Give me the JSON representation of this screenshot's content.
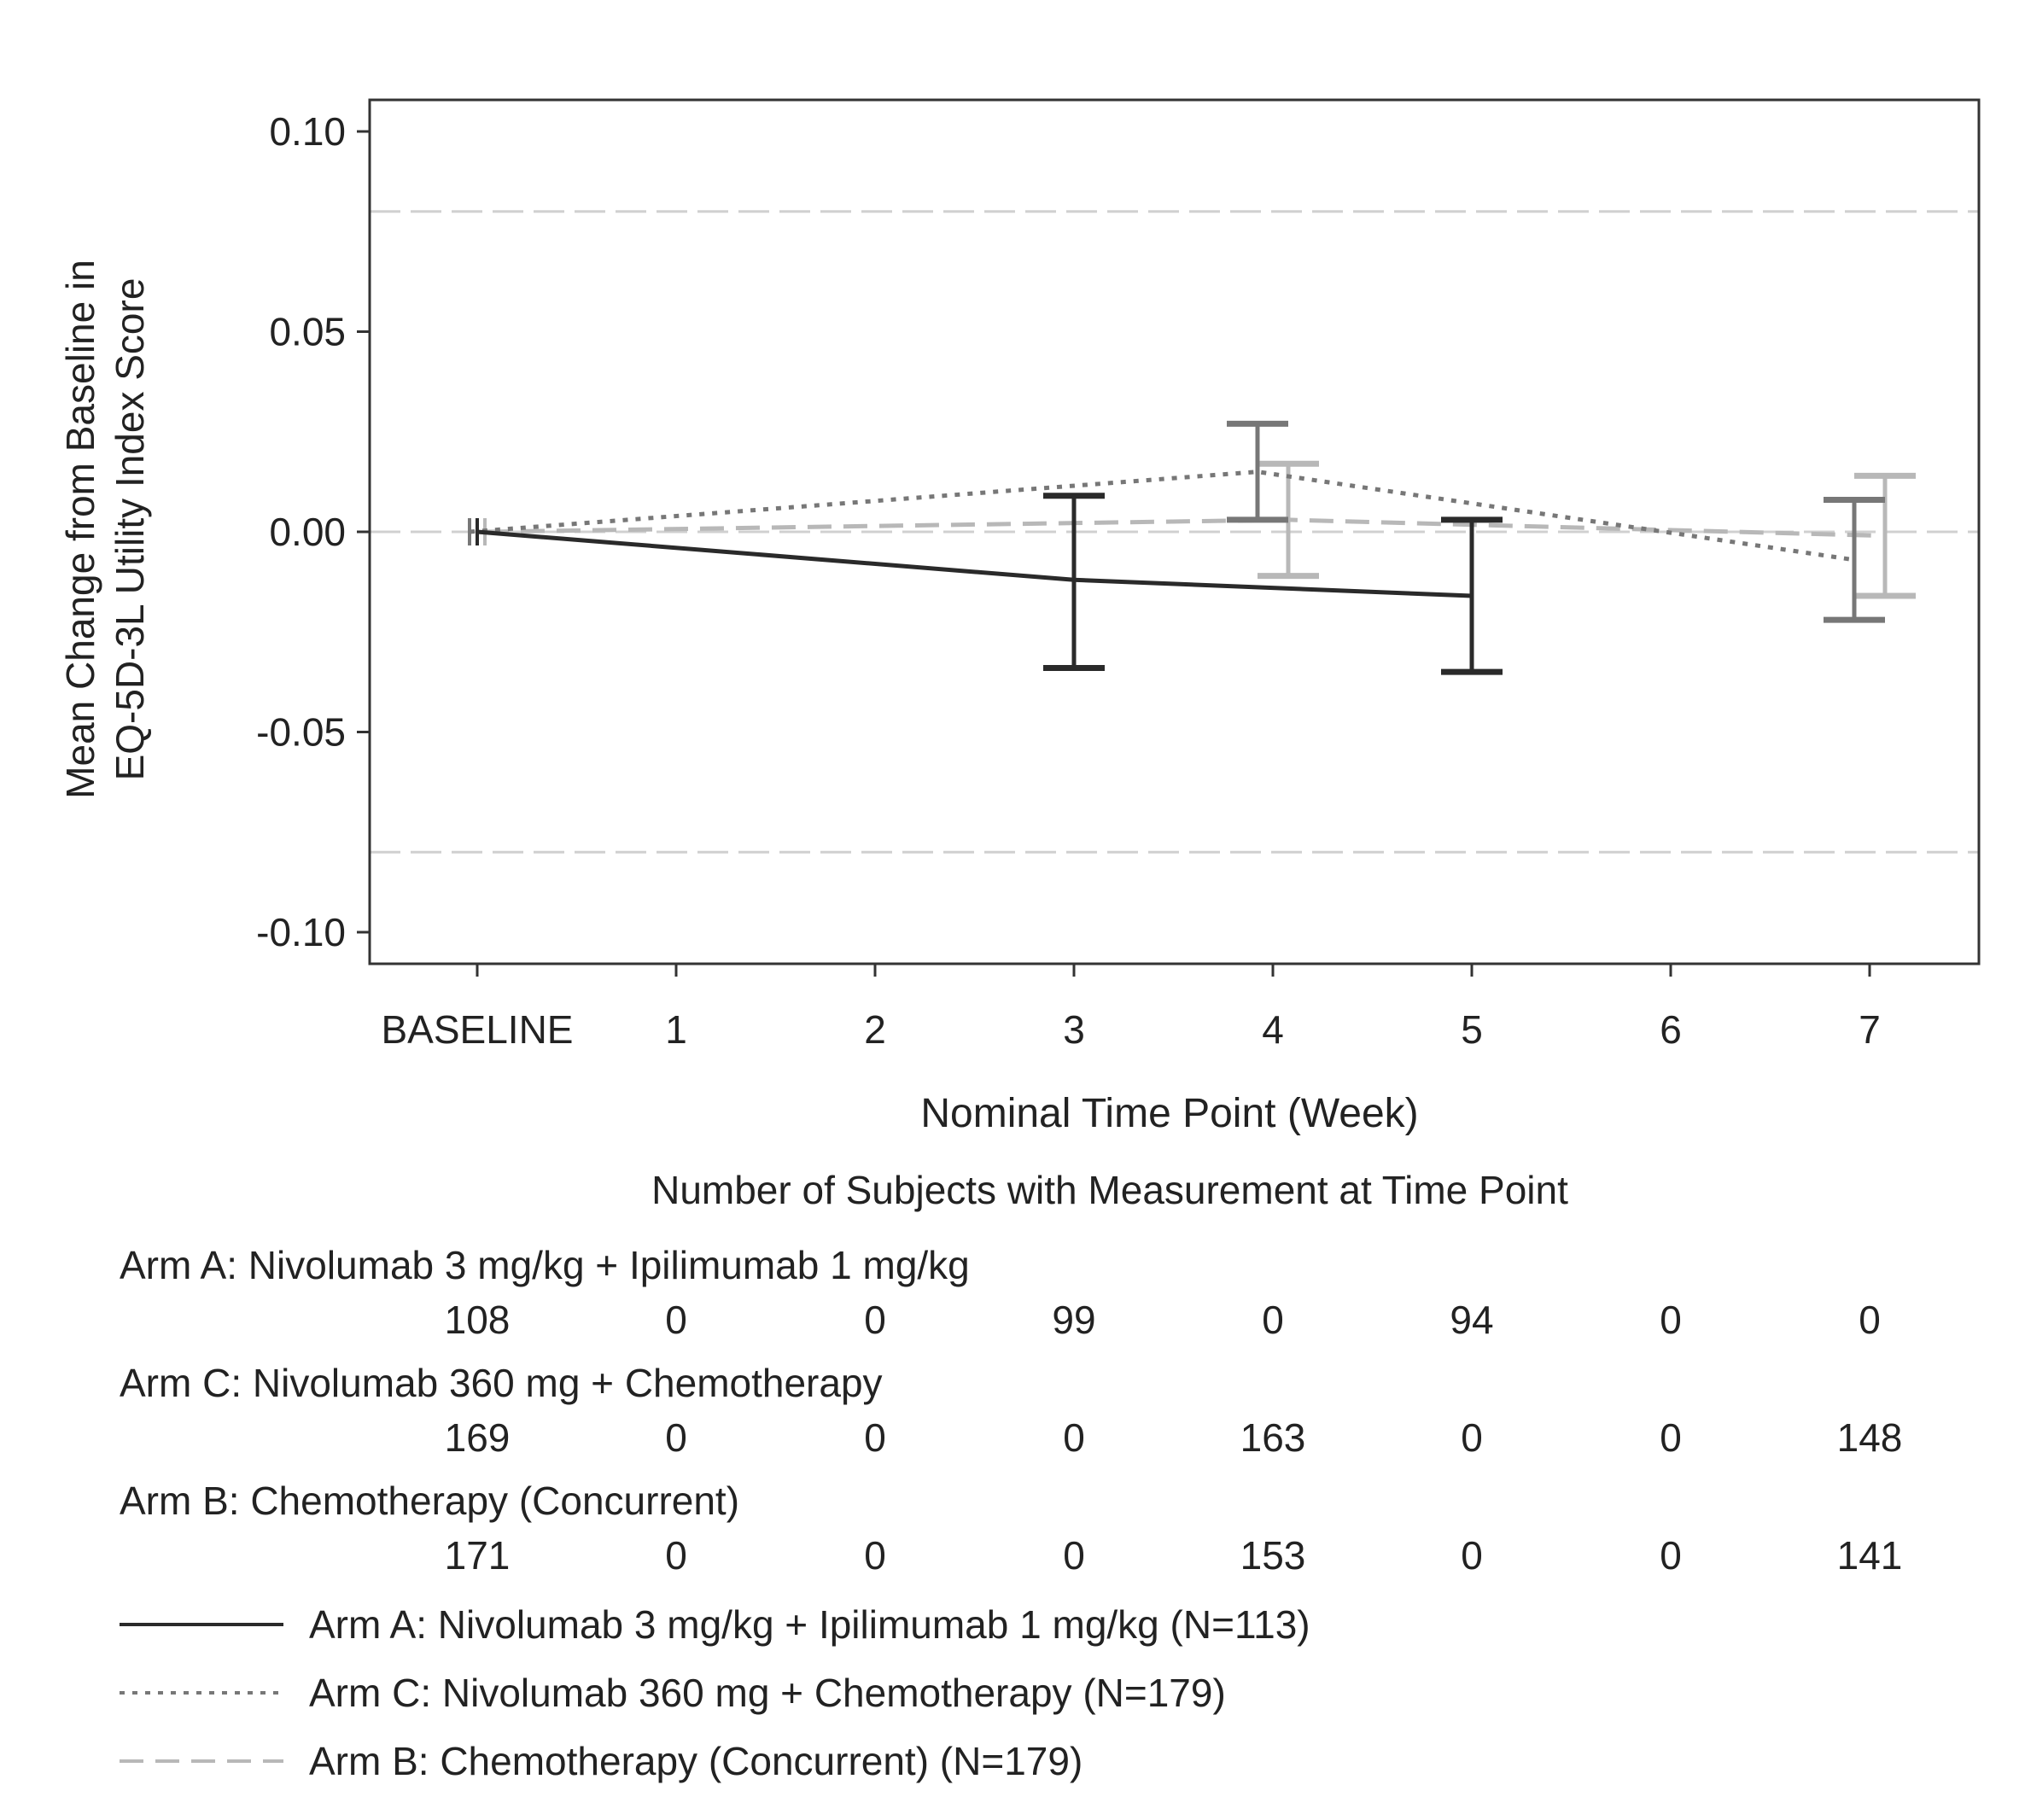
{
  "chart_data": {
    "type": "line",
    "xlabel": "Nominal Time Point (Week)",
    "ylabel_lines": [
      "Mean Change from Baseline in",
      "EQ-5D-3L Utility Index Score"
    ],
    "x_ticks": [
      "BASELINE",
      "1",
      "2",
      "3",
      "4",
      "5",
      "6",
      "7"
    ],
    "y_ticks": [
      "0.10",
      "0.05",
      "0.00",
      "-0.05",
      "-0.10"
    ],
    "y_tick_values": [
      0.1,
      0.05,
      0.0,
      -0.05,
      -0.1
    ],
    "ylim": [
      -0.108,
      0.108
    ],
    "reference_lines": [
      0.08,
      0.0,
      -0.08
    ],
    "grid": false,
    "series": [
      {
        "name": "Arm A: Nivolumab 3 mg/kg + Ipilimumab 1 mg/kg (N=113)",
        "style": "solid",
        "color": "#2a2a2a",
        "x": [
          0,
          3,
          5
        ],
        "y": [
          0.0,
          -0.012,
          -0.016
        ],
        "lower": [
          0.0,
          -0.034,
          -0.035
        ],
        "upper": [
          0.0,
          0.009,
          0.003
        ]
      },
      {
        "name": "Arm C: Nivolumab 360 mg + Chemotherapy (N=179)",
        "style": "dotted",
        "color": "#777777",
        "x": [
          0,
          4,
          7
        ],
        "y": [
          0.0,
          0.015,
          -0.007
        ],
        "lower": [
          0.0,
          0.003,
          -0.022
        ],
        "upper": [
          0.0,
          0.027,
          0.008
        ]
      },
      {
        "name": "Arm B: Chemotherapy (Concurrent) (N=179)",
        "style": "dashed",
        "color": "#b8b8b8",
        "x": [
          0,
          4,
          7
        ],
        "y": [
          0.0,
          0.003,
          -0.001
        ],
        "lower": [
          0.0,
          -0.011,
          -0.016
        ],
        "upper": [
          0.0,
          0.017,
          0.014
        ]
      }
    ],
    "subjects_table": {
      "title": "Number of Subjects with Measurement at Time Point",
      "rows": [
        {
          "label": "Arm A: Nivolumab 3 mg/kg + Ipilimumab 1 mg/kg",
          "counts": [
            "108",
            "0",
            "0",
            "99",
            "0",
            "94",
            "0",
            "0"
          ]
        },
        {
          "label": "Arm C: Nivolumab 360 mg + Chemotherapy",
          "counts": [
            "169",
            "0",
            "0",
            "0",
            "163",
            "0",
            "0",
            "148"
          ]
        },
        {
          "label": "Arm B: Chemotherapy (Concurrent)",
          "counts": [
            "171",
            "0",
            "0",
            "0",
            "153",
            "0",
            "0",
            "141"
          ]
        }
      ]
    },
    "legend_placement": "bottom"
  }
}
